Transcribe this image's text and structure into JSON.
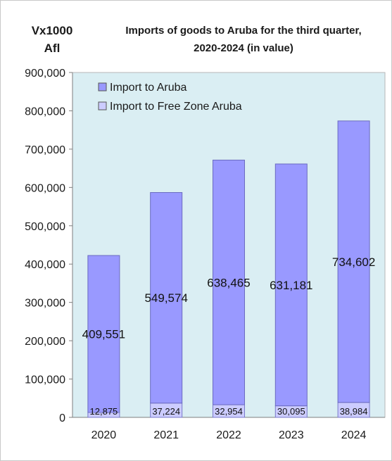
{
  "chart_data": {
    "type": "bar",
    "stacked": true,
    "title": "Imports of goods to Aruba for the third quarter, 2020-2024 (in value)",
    "title_lines": [
      "Imports of goods to Aruba for the third quarter,",
      "2020-2024 (in value)"
    ],
    "unit_label_lines": [
      "Vx1000",
      "Afl"
    ],
    "categories": [
      "2020",
      "2021",
      "2022",
      "2023",
      "2024"
    ],
    "series": [
      {
        "name": "Import to Free Zone Aruba",
        "values": [
          12875,
          37224,
          32954,
          30095,
          38984
        ],
        "labels": [
          "12,875",
          "37,224",
          "32,954",
          "30,095",
          "38,984"
        ],
        "color": "#ccccff"
      },
      {
        "name": "Import to Aruba",
        "values": [
          409551,
          549574,
          638465,
          631181,
          734602
        ],
        "labels": [
          "409,551",
          "549,574",
          "638,465",
          "631,181",
          "734,602"
        ],
        "color": "#9999ff"
      }
    ],
    "ylim": [
      0,
      900000
    ],
    "yticks": [
      0,
      100000,
      200000,
      300000,
      400000,
      500000,
      600000,
      700000,
      800000,
      900000
    ],
    "ytick_labels": [
      "0",
      "100,000",
      "200,000",
      "300,000",
      "400,000",
      "500,000",
      "600,000",
      "700,000",
      "800,000",
      "900,000"
    ],
    "legend": {
      "position": "top-left",
      "entries": [
        "Import to Aruba",
        "Import to Free Zone Aruba"
      ]
    },
    "plot_background": "#daeef3",
    "grid": false
  }
}
